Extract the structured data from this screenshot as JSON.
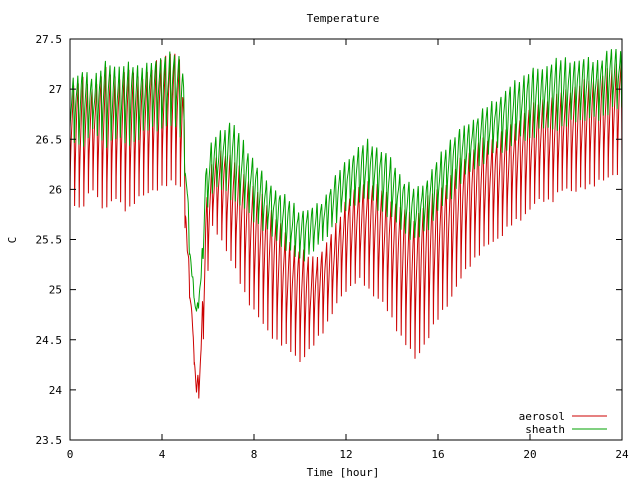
{
  "chart_data": {
    "type": "line",
    "title": "Temperature",
    "xlabel": "Time [hour]",
    "ylabel": "C",
    "xlim": [
      0,
      24
    ],
    "ylim": [
      23.5,
      27.5
    ],
    "x_ticks": [
      {
        "value": 0,
        "label": "0"
      },
      {
        "value": 4,
        "label": "4"
      },
      {
        "value": 8,
        "label": "8"
      },
      {
        "value": 12,
        "label": "12"
      },
      {
        "value": 16,
        "label": "16"
      },
      {
        "value": 20,
        "label": "20"
      },
      {
        "value": 24,
        "label": "24"
      }
    ],
    "y_ticks": [
      {
        "value": 23.5,
        "label": "23.5"
      },
      {
        "value": 24,
        "label": "24"
      },
      {
        "value": 24.5,
        "label": "24.5"
      },
      {
        "value": 25,
        "label": "25"
      },
      {
        "value": 25.5,
        "label": "25.5"
      },
      {
        "value": 26,
        "label": "26"
      },
      {
        "value": 26.5,
        "label": "26.5"
      },
      {
        "value": 27,
        "label": "27"
      },
      {
        "value": 27.5,
        "label": "27.5"
      }
    ],
    "grid": false,
    "legend_position": "bottom-right",
    "oscillation_period_hours": 0.2,
    "series": [
      {
        "name": "aerosol",
        "color": "#cc0000",
        "x": [
          0,
          0.5,
          1,
          1.5,
          2,
          2.5,
          3,
          3.5,
          4,
          4.5,
          4.9,
          5.1,
          5.3,
          5.5,
          5.7,
          5.9,
          6.2,
          6.6,
          7,
          7.5,
          8,
          8.5,
          9,
          9.5,
          10,
          10.5,
          11,
          11.5,
          12,
          12.5,
          13,
          13.5,
          14,
          14.5,
          15,
          15.5,
          16,
          16.5,
          17,
          17.5,
          18,
          18.5,
          19,
          19.5,
          20,
          20.5,
          21,
          21.5,
          22,
          22.5,
          23,
          23.5,
          24
        ],
        "high": [
          27.0,
          27.1,
          27.0,
          27.2,
          27.1,
          27.2,
          27.1,
          27.2,
          27.3,
          27.4,
          27.2,
          25.5,
          24.8,
          24.0,
          24.5,
          25.8,
          26.3,
          26.4,
          26.3,
          26.2,
          26.0,
          25.9,
          25.7,
          25.5,
          25.4,
          25.3,
          25.4,
          25.6,
          25.9,
          26.0,
          26.1,
          26.0,
          25.9,
          25.8,
          25.7,
          25.9,
          26.0,
          26.1,
          26.3,
          26.4,
          26.5,
          26.5,
          26.6,
          26.7,
          26.8,
          26.9,
          26.9,
          27.0,
          27.0,
          27.1,
          27.1,
          27.2,
          27.3
        ],
        "low": [
          25.9,
          25.8,
          26.0,
          25.8,
          25.9,
          25.8,
          25.9,
          26.0,
          26.0,
          26.1,
          26.0,
          25.2,
          24.6,
          23.9,
          24.0,
          25.0,
          25.6,
          25.5,
          25.3,
          25.0,
          24.8,
          24.6,
          24.5,
          24.4,
          24.3,
          24.4,
          24.6,
          24.8,
          25.0,
          25.1,
          25.0,
          24.9,
          24.7,
          24.5,
          24.3,
          24.5,
          24.7,
          24.9,
          25.1,
          25.3,
          25.4,
          25.5,
          25.6,
          25.7,
          25.8,
          25.9,
          25.9,
          26.0,
          26.0,
          26.0,
          26.1,
          26.1,
          26.2
        ]
      },
      {
        "name": "sheath",
        "color": "#00a000",
        "x": [
          0,
          0.5,
          1,
          1.5,
          2,
          2.5,
          3,
          3.5,
          4,
          4.5,
          4.9,
          5.1,
          5.3,
          5.5,
          5.7,
          5.9,
          6.2,
          6.6,
          7,
          7.5,
          8,
          8.5,
          9,
          9.5,
          10,
          10.5,
          11,
          11.5,
          12,
          12.5,
          13,
          13.5,
          14,
          14.5,
          15,
          15.5,
          16,
          16.5,
          17,
          17.5,
          18,
          18.5,
          19,
          19.5,
          20,
          20.5,
          21,
          21.5,
          22,
          22.5,
          23,
          23.5,
          24
        ],
        "high": [
          27.1,
          27.2,
          27.1,
          27.3,
          27.2,
          27.3,
          27.2,
          27.3,
          27.3,
          27.4,
          27.3,
          26.0,
          25.2,
          24.8,
          25.2,
          26.2,
          26.5,
          26.6,
          26.7,
          26.5,
          26.3,
          26.1,
          26.0,
          25.9,
          25.8,
          25.8,
          25.9,
          26.1,
          26.3,
          26.4,
          26.5,
          26.4,
          26.3,
          26.1,
          26.0,
          26.1,
          26.3,
          26.5,
          26.6,
          26.7,
          26.8,
          26.9,
          27.0,
          27.1,
          27.2,
          27.2,
          27.3,
          27.3,
          27.3,
          27.3,
          27.3,
          27.4,
          27.4
        ],
        "low": [
          26.4,
          26.3,
          26.5,
          26.3,
          26.4,
          26.3,
          26.4,
          26.5,
          26.5,
          26.5,
          26.4,
          25.6,
          25.0,
          24.7,
          24.9,
          25.7,
          25.9,
          25.9,
          25.8,
          25.7,
          25.6,
          25.5,
          25.4,
          25.3,
          25.2,
          25.3,
          25.4,
          25.6,
          25.7,
          25.8,
          25.8,
          25.7,
          25.6,
          25.5,
          25.4,
          25.5,
          25.7,
          25.8,
          26.0,
          26.1,
          26.2,
          26.3,
          26.3,
          26.4,
          26.4,
          26.5,
          26.5,
          26.5,
          26.6,
          26.6,
          26.6,
          26.7,
          26.7
        ]
      }
    ]
  }
}
